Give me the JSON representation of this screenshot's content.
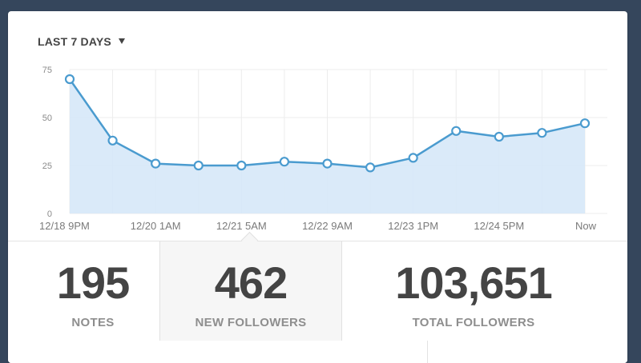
{
  "range_selector": {
    "label": "LAST 7 DAYS",
    "icon": "caret-down-icon"
  },
  "colors": {
    "line": "#4a9bcf",
    "fill": "#d6e8f8",
    "grid": "#ececec",
    "text": "#444444",
    "muted": "#8e8e8e"
  },
  "chart_data": {
    "type": "area",
    "title": "",
    "xlabel": "",
    "ylabel": "",
    "ylim": [
      0,
      75
    ],
    "yticks": [
      0,
      25,
      50,
      75
    ],
    "grid": true,
    "x_tick_labels": [
      {
        "index": 0,
        "label": "12/18 9PM"
      },
      {
        "index": 2,
        "label": "12/20 1AM"
      },
      {
        "index": 4,
        "label": "12/21 5AM"
      },
      {
        "index": 6,
        "label": "12/22 9AM"
      },
      {
        "index": 8,
        "label": "12/23 1PM"
      },
      {
        "index": 10,
        "label": "12/24 5PM"
      },
      {
        "index": 12,
        "label": "Now"
      }
    ],
    "series": [
      {
        "values": [
          70,
          38,
          26,
          25,
          25,
          27,
          26,
          24,
          29,
          43,
          40,
          42,
          47
        ]
      }
    ]
  },
  "stats": {
    "notes": {
      "value": "195",
      "label": "NOTES"
    },
    "new_followers": {
      "value": "462",
      "label": "NEW FOLLOWERS"
    },
    "total_followers": {
      "value": "103,651",
      "label": "TOTAL FOLLOWERS"
    }
  }
}
